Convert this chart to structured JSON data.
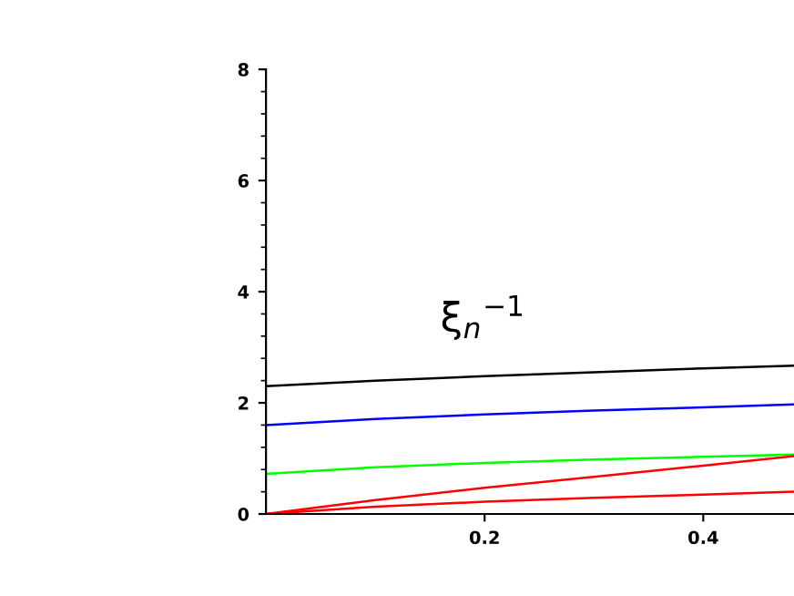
{
  "chart_data": {
    "type": "line",
    "x": [
      0,
      0.1,
      0.2,
      0.3,
      0.4,
      0.483
    ],
    "series": [
      {
        "color": "#000000",
        "values": [
          2.3,
          2.4,
          2.48,
          2.55,
          2.62,
          2.67
        ]
      },
      {
        "color": "#0000ff",
        "values": [
          1.6,
          1.71,
          1.79,
          1.86,
          1.92,
          1.97
        ]
      },
      {
        "color": "#00ff00",
        "values": [
          0.72,
          0.84,
          0.92,
          0.98,
          1.03,
          1.07
        ]
      },
      {
        "color": "#ff0000",
        "values": [
          0,
          0.25,
          0.47,
          0.67,
          0.87,
          1.04
        ]
      },
      {
        "color": "#ff0000",
        "values": [
          0,
          0.13,
          0.22,
          0.29,
          0.35,
          0.4
        ]
      }
    ],
    "xlim": [
      0,
      0.483
    ],
    "ylim": [
      0,
      8
    ],
    "xticks": [
      0.2,
      0.4
    ],
    "yticks": [
      0,
      2,
      4,
      6,
      8
    ],
    "annotations": [
      "ξ$_{n}$$^{−1}$"
    ],
    "grid": false,
    "legend": false,
    "marker": "none",
    "line_style": "solid"
  }
}
